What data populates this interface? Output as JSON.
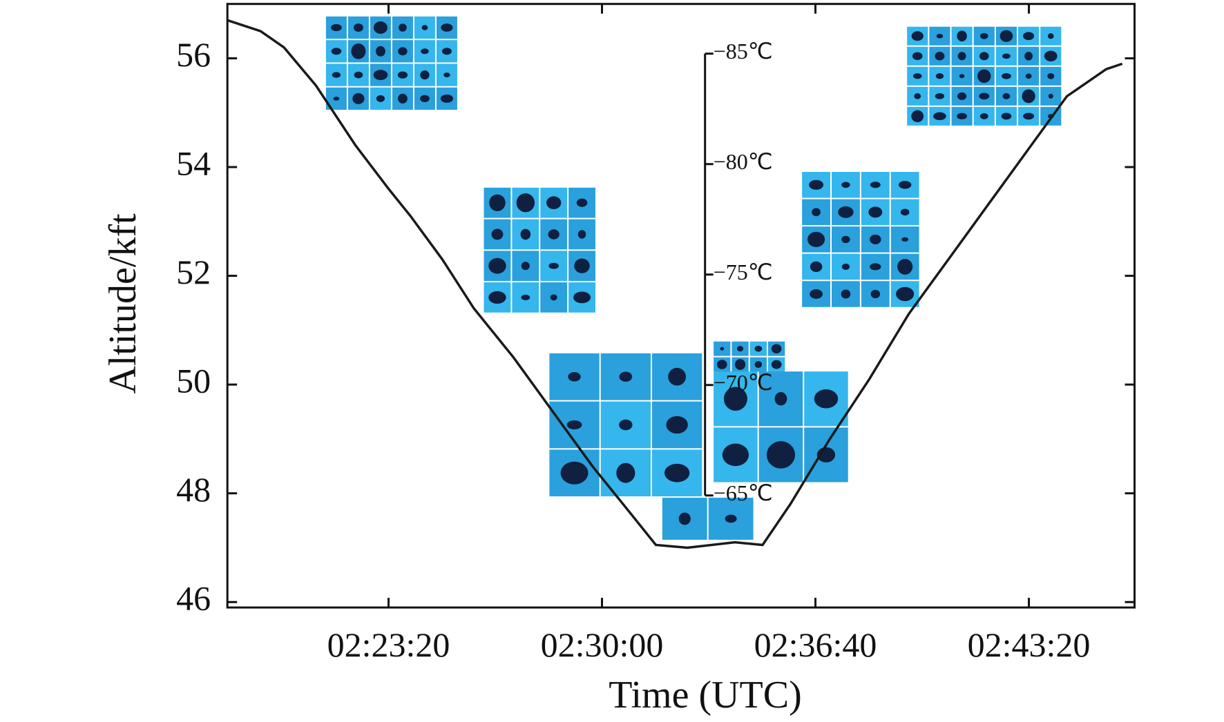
{
  "chart_data": {
    "type": "line",
    "x_label": "Time (UTC)",
    "y_label": "Altitude/kft",
    "x": [
      "02:18:18",
      "02:19:20",
      "02:20:04",
      "02:21:04",
      "02:22:18",
      "02:23:20",
      "02:24:01",
      "02:25:01",
      "02:26:00",
      "02:27:14",
      "02:28:28",
      "02:29:42",
      "02:30:56",
      "02:31:41",
      "02:32:40",
      "02:34:09",
      "02:35:01",
      "02:35:53",
      "02:37:07",
      "02:38:21",
      "02:39:35",
      "02:40:49",
      "02:42:03",
      "02:43:17",
      "02:44:31",
      "02:45:45",
      "02:46:15"
    ],
    "series": [
      {
        "name": "Altitude",
        "color": "#1a1a1a",
        "values": [
          56.7,
          56.5,
          56.2,
          55.5,
          54.4,
          53.6,
          53.1,
          52.3,
          51.4,
          50.5,
          49.5,
          48.5,
          47.6,
          47.05,
          47.0,
          47.1,
          47.05,
          47.8,
          49.0,
          50.1,
          51.3,
          52.3,
          53.3,
          54.3,
          55.3,
          55.8,
          55.9
        ]
      }
    ],
    "xlim": [
      "02:18:18",
      "02:46:38"
    ],
    "xticks": [
      "02:23:20",
      "02:30:00",
      "02:36:40",
      "02:43:20"
    ],
    "ylim": [
      45.9,
      57
    ],
    "yticks": [
      46,
      48,
      50,
      52,
      54,
      56
    ],
    "y2lim": [
      -65,
      -85
    ],
    "y2ticks": [
      {
        "value": -85,
        "label": "−85℃"
      },
      {
        "value": -80,
        "label": "−80℃"
      },
      {
        "value": -75,
        "label": "−75℃"
      },
      {
        "value": -70,
        "label": "−70℃"
      },
      {
        "value": -65,
        "label": "−65℃"
      }
    ]
  }
}
